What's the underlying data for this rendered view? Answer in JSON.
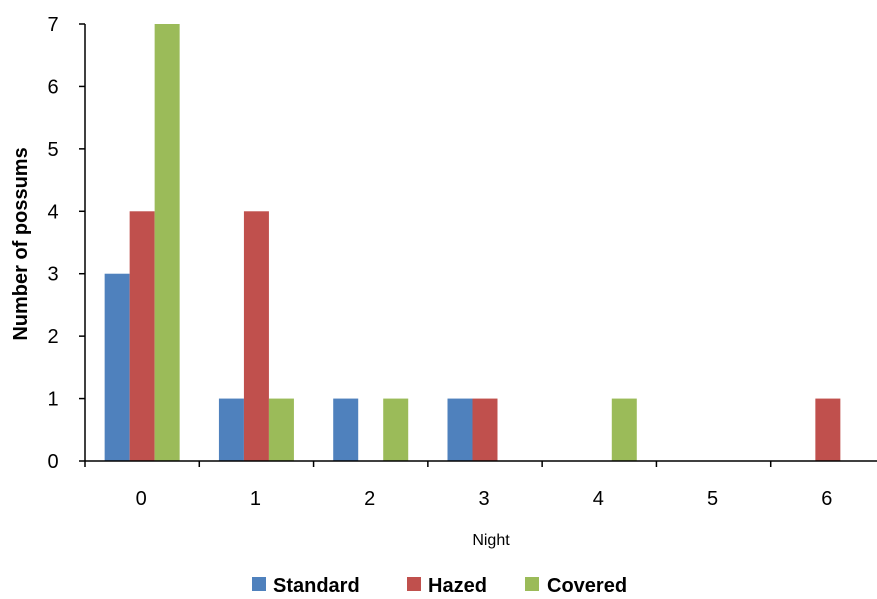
{
  "chart_data": {
    "type": "bar",
    "title": "",
    "xlabel": "Night",
    "ylabel": "Number of possums",
    "categories": [
      "0",
      "1",
      "2",
      "3",
      "4",
      "5",
      "6"
    ],
    "ylim": [
      0,
      7
    ],
    "yticks": [
      "0",
      "1",
      "2",
      "3",
      "4",
      "5",
      "6",
      "7"
    ],
    "grid": false,
    "legend_position": "bottom",
    "series": [
      {
        "name": "Standard",
        "color": "#4F81BD",
        "values": [
          3,
          1,
          1,
          1,
          0,
          0,
          0
        ]
      },
      {
        "name": "Hazed",
        "color": "#C0504D",
        "values": [
          4,
          4,
          0,
          1,
          0,
          0,
          1
        ]
      },
      {
        "name": "Covered",
        "color": "#9BBB59",
        "values": [
          7,
          1,
          1,
          0,
          1,
          0,
          0
        ]
      }
    ]
  }
}
